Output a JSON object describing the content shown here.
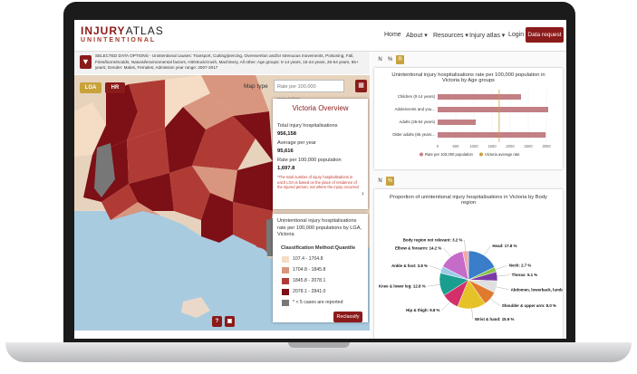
{
  "nav": {
    "logo_top_a": "INJURY",
    "logo_top_b": "ATLAS",
    "logo_bottom": "UNINTENTIONAL",
    "links": [
      "Home",
      "About ▾",
      "Resources ▾",
      "Injury atlas ▾",
      "Login"
    ],
    "cta": "Data request"
  },
  "options": {
    "text": "SELECTED DATA OPTIONS - Unintentional causes: Transport, Cutting/piercing, Overexertion and/or strenuous movements, Poisoning, Fall, Fires/burns/scalds, Natural/environmental factors, Hit/struck/crush, Machinery, All other; Age groups: 0-14 years, 15-24 years, 25-64 years, 65+ years; Gender: Males, Females; Admission year range: 2007-2017"
  },
  "map": {
    "lga_btn": "LGA",
    "hr_btn": "HR",
    "map_type_label": "Map type",
    "map_type_value": "Rate per 100,000 population..."
  },
  "overview": {
    "title": "Victoria Overview",
    "total_label": "Total injury hospitalisations",
    "total_value": "956,158",
    "avg_label": "Average per year",
    "avg_value": "95,616",
    "rate_label": "Rate per 100,000 population",
    "rate_value": "1,697.8",
    "note": "*The total number of injury hospitalisations in each LGA is based on the place of residence of the injured person, not where the injury occurred"
  },
  "legend": {
    "title": "Unintentional injury hospitalisations rate per 100,000 populations by LGA, Victoria",
    "method": "Classification Method:Quantile",
    "items": [
      {
        "label": "107.4 - 1704.8",
        "color": "#f5dcc4"
      },
      {
        "label": "1704.8 - 1845.8",
        "color": "#d9967e"
      },
      {
        "label": "1845.8 - 2078.1",
        "color": "#b03b35"
      },
      {
        "label": "2078.1 - 2841.0",
        "color": "#7d0f16"
      },
      {
        "label": "* < 5 cases are reported",
        "color": "#777777"
      }
    ],
    "reclassify": "Reclassify"
  },
  "toggles": {
    "n": "N",
    "pct": "%",
    "r": "R"
  },
  "chart_data": [
    {
      "type": "bar",
      "title": "Unintentional injury hospitalisations rate per 100,000 population in Victoria by Age groups",
      "categories": [
        "Children (0-14 years)",
        "Adolescents and you...",
        "Adults (25-64 years)",
        "Older adults (65 years..."
      ],
      "series": [
        {
          "name": "Rate per 100,000 population",
          "values": [
            2300,
            3050,
            1050,
            2980
          ]
        }
      ],
      "reference": {
        "name": "Victoria average rate",
        "value": 1697.8
      },
      "xticks": [
        "0",
        "500",
        "1000",
        "1500",
        "2000",
        "2500",
        "3000"
      ],
      "xlim": [
        0,
        3200
      ],
      "orientation": "horizontal"
    },
    {
      "type": "pie",
      "title": "Proportion of unintentional injury hospitalisations in Victoria by Body region",
      "slices": [
        {
          "label": "Head: 17.8 %",
          "value": 17.8,
          "color": "#3a7dc9"
        },
        {
          "label": "Neck: 2.7 %",
          "value": 2.7,
          "color": "#8bc34a"
        },
        {
          "label": "Thorax: 5.1 %",
          "value": 5.1,
          "color": "#7b3aa8"
        },
        {
          "label": "Abdomen, lowerback, lumbar spine & pelvis: 6.7 %",
          "value": 6.7,
          "color": "#e0e0e0"
        },
        {
          "label": "Shoulder & upper arm: 8.0 %",
          "value": 8.0,
          "color": "#e07a2e"
        },
        {
          "label": "Wrist & hand: 15.9 %",
          "value": 15.9,
          "color": "#e6c229"
        },
        {
          "label": "Hip & thigh: 9.8 %",
          "value": 9.8,
          "color": "#d32f6a"
        },
        {
          "label": "Knee & lower leg: 12.8 %",
          "value": 12.8,
          "color": "#1a9e8f"
        },
        {
          "label": "Ankle & foot: 3.8 %",
          "value": 3.8,
          "color": "#9ecbe8"
        },
        {
          "label": "Elbow & forearm: 14.2 %",
          "value": 14.2,
          "color": "#c56bc8"
        },
        {
          "label": "Body region not relevant: 3.2 %",
          "value": 3.2,
          "color": "#f2a7a7"
        }
      ]
    }
  ]
}
